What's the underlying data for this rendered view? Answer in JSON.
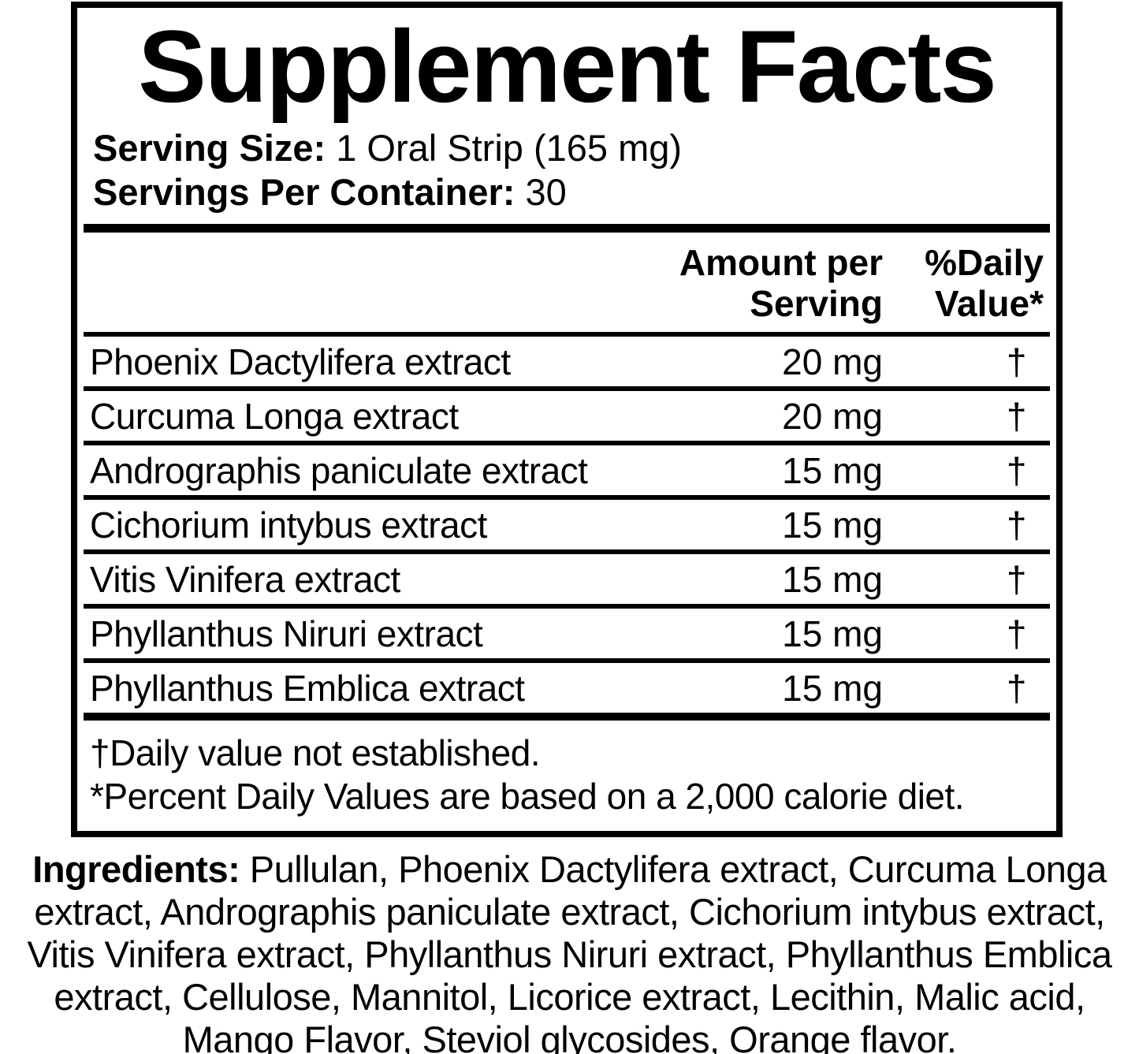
{
  "colors": {
    "ink": "#000000",
    "background": "#ffffff"
  },
  "label": {
    "title": "Supplement Facts",
    "serving_size_label": "Serving Size:",
    "serving_size_value": " 1 Oral Strip (165 mg)",
    "servings_per_container_label": "Servings Per Container:",
    "servings_per_container_value": " 30",
    "header": {
      "amount_line1": "Amount per",
      "amount_line2": "Serving",
      "dv_line1": "%Daily",
      "dv_line2": "Value*"
    },
    "rows": [
      {
        "name": "Phoenix Dactylifera extract",
        "amount": "20 mg",
        "dv": "†"
      },
      {
        "name": "Curcuma Longa extract",
        "amount": "20 mg",
        "dv": "†"
      },
      {
        "name": "Andrographis paniculate extract",
        "amount": "15 mg",
        "dv": "†"
      },
      {
        "name": "Cichorium intybus extract",
        "amount": "15 mg",
        "dv": "†"
      },
      {
        "name": "Vitis Vinifera  extract",
        "amount": "15 mg",
        "dv": "†"
      },
      {
        "name": "Phyllanthus Niruri extract",
        "amount": "15 mg",
        "dv": "†"
      },
      {
        "name": "Phyllanthus Emblica extract",
        "amount": "15 mg",
        "dv": "†"
      }
    ],
    "footnotes": [
      "†Daily value not established.",
      "*Percent Daily Values are based on a 2,000 calorie diet."
    ]
  },
  "ingredients": {
    "label": "Ingredients:",
    "line1_rest": " Pullulan, Phoenix Dactylifera extract, Curcuma Longa",
    "line2": "extract, Andrographis paniculate extract, Cichorium intybus extract,",
    "line3": "Vitis Vinifera extract, Phyllanthus Niruri extract, Phyllanthus Emblica",
    "line4": "extract, Cellulose, Mannitol, Licorice extract, Lecithin, Malic acid,",
    "line5": "Mango Flavor, Steviol glycosides, Orange flavor."
  }
}
